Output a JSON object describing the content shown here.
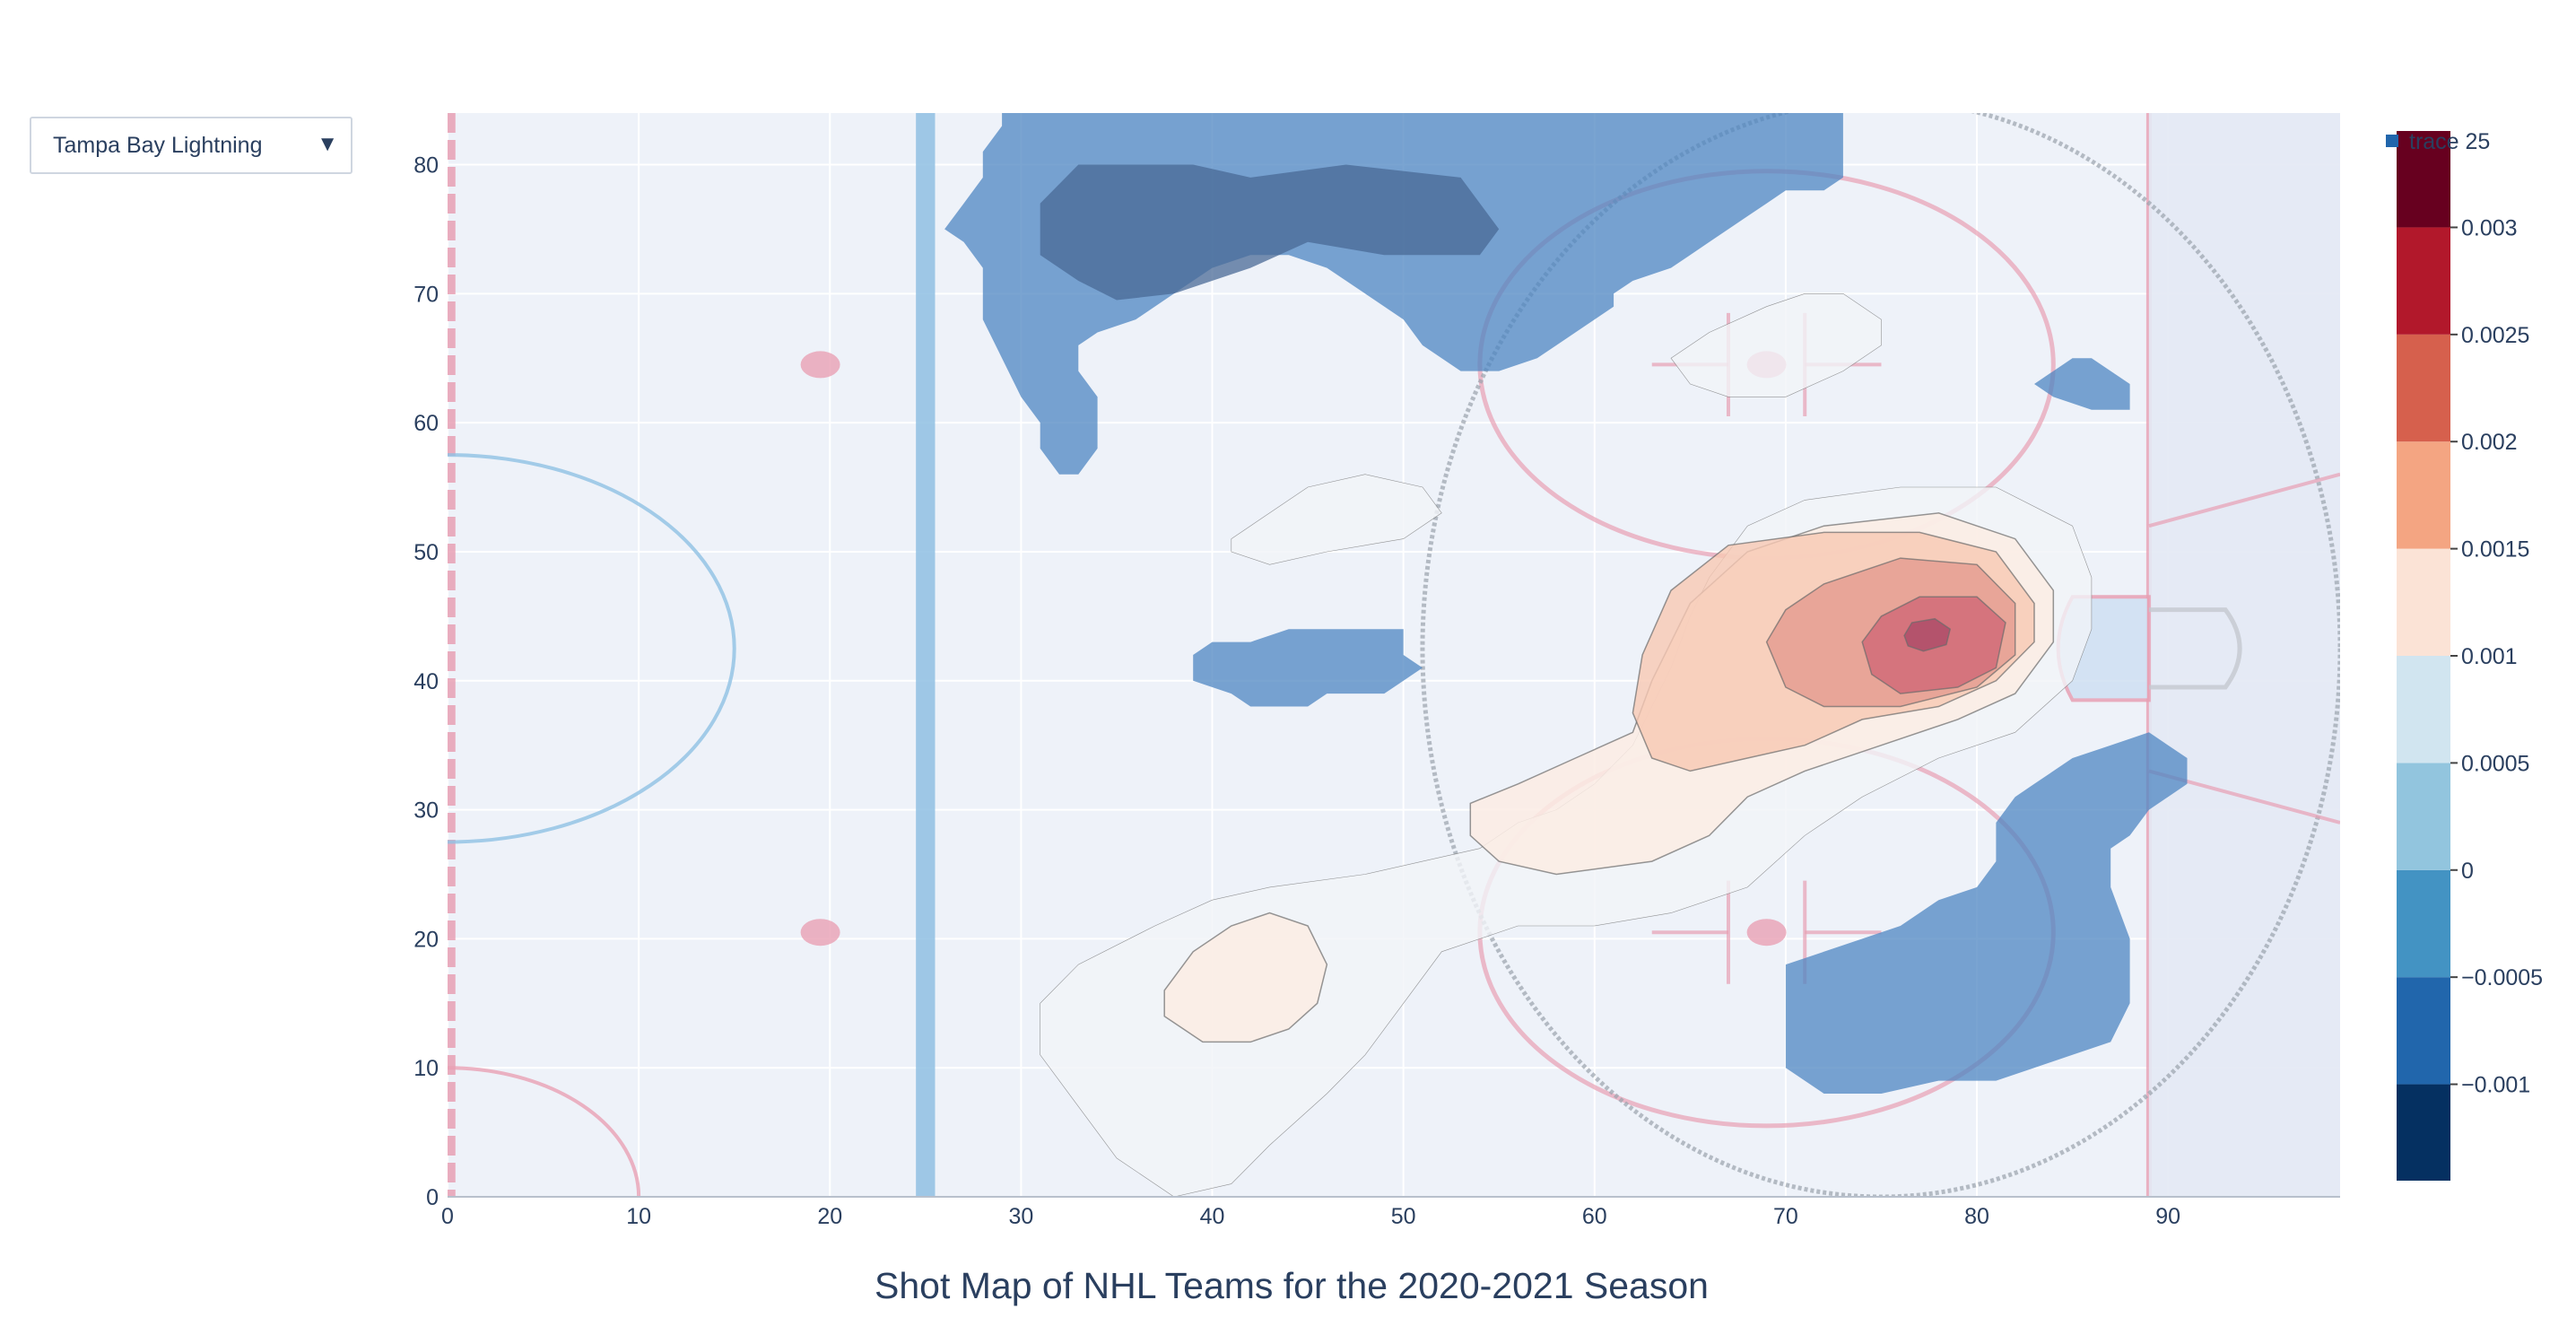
{
  "dropdown": {
    "selected": "Tampa Bay Lightning"
  },
  "chart_data": {
    "type": "heatmap",
    "title": "Shot Map of NHL Teams for the 2020-2021 Season",
    "xlabel": "",
    "ylabel": "",
    "xlim": [
      0,
      99
    ],
    "ylim": [
      0,
      84
    ],
    "x_ticks": [
      0,
      10,
      20,
      30,
      40,
      50,
      60,
      70,
      80,
      90
    ],
    "y_ticks": [
      0,
      10,
      20,
      30,
      40,
      50,
      60,
      70,
      80
    ],
    "grid": true,
    "legend": {
      "entries": [
        "trace 25"
      ],
      "placement": "top-right"
    },
    "colorscale": "RdBu (reversed)",
    "colorbar": {
      "tick_values": [
        -0.001,
        -0.0005,
        0,
        0.0005,
        0.001,
        0.0015,
        0.002,
        0.0025,
        0.003
      ],
      "tick_labels": [
        "−0.001",
        "−0.0005",
        "0",
        "0.0005",
        "0.001",
        "0.0015",
        "0.002",
        "0.0025",
        "0.003"
      ],
      "range": [
        -0.00145,
        0.00345
      ],
      "bands": [
        {
          "from": -0.00145,
          "to": -0.001,
          "color": "#053061"
        },
        {
          "from": -0.001,
          "to": -0.0005,
          "color": "#2166ac"
        },
        {
          "from": -0.0005,
          "to": 0,
          "color": "#4393c3"
        },
        {
          "from": 0,
          "to": 0.0005,
          "color": "#92c5de"
        },
        {
          "from": 0.0005,
          "to": 0.001,
          "color": "#d1e5f0"
        },
        {
          "from": 0.001,
          "to": 0.0015,
          "color": "#fbe3d6"
        },
        {
          "from": 0.0015,
          "to": 0.002,
          "color": "#f4a582"
        },
        {
          "from": 0.002,
          "to": 0.0025,
          "color": "#d6604d"
        },
        {
          "from": 0.0025,
          "to": 0.003,
          "color": "#b2182b"
        },
        {
          "from": 0.003,
          "to": 0.00345,
          "color": "#67001f"
        }
      ]
    },
    "regions": [
      {
        "level": -0.0005,
        "color": "#4d86c2",
        "opacity": 0.75,
        "points": [
          [
            29,
            84
          ],
          [
            73,
            84
          ],
          [
            73,
            79
          ],
          [
            72,
            78
          ],
          [
            70,
            78
          ],
          [
            69,
            77
          ],
          [
            68,
            76
          ],
          [
            67,
            75
          ],
          [
            66,
            74
          ],
          [
            65,
            73
          ],
          [
            64,
            72
          ],
          [
            62,
            71
          ],
          [
            61,
            70
          ],
          [
            61,
            69
          ],
          [
            60,
            68
          ],
          [
            59,
            67
          ],
          [
            58,
            66
          ],
          [
            57,
            65
          ],
          [
            55,
            64
          ],
          [
            53,
            64
          ],
          [
            51,
            66
          ],
          [
            50,
            68
          ],
          [
            48,
            70
          ],
          [
            46,
            72
          ],
          [
            44,
            73
          ],
          [
            42,
            73
          ],
          [
            40,
            72
          ],
          [
            38,
            70
          ],
          [
            36,
            68
          ],
          [
            34,
            67
          ],
          [
            33,
            66
          ],
          [
            33,
            64
          ],
          [
            34,
            62
          ],
          [
            34,
            58
          ],
          [
            33,
            56
          ],
          [
            32,
            56
          ],
          [
            31,
            58
          ],
          [
            31,
            60
          ],
          [
            30,
            62
          ],
          [
            29,
            65
          ],
          [
            28,
            68
          ],
          [
            28,
            72
          ],
          [
            27,
            74
          ],
          [
            26,
            75
          ],
          [
            27,
            77
          ],
          [
            28,
            79
          ],
          [
            28,
            81
          ],
          [
            29,
            83
          ]
        ]
      },
      {
        "level": -0.001,
        "color": "#4a6a96",
        "opacity": 0.75,
        "points": [
          [
            31,
            73
          ],
          [
            33,
            71
          ],
          [
            35,
            69.5
          ],
          [
            38,
            70
          ],
          [
            42,
            72
          ],
          [
            45,
            74
          ],
          [
            49,
            73
          ],
          [
            54,
            73
          ],
          [
            55,
            75
          ],
          [
            53,
            79
          ],
          [
            47,
            80
          ],
          [
            42,
            79
          ],
          [
            39,
            80
          ],
          [
            33,
            80
          ],
          [
            31,
            77
          ]
        ]
      },
      {
        "level": -0.0005,
        "color": "#4d86c2",
        "opacity": 0.75,
        "points": [
          [
            39,
            40
          ],
          [
            41,
            39
          ],
          [
            42,
            38
          ],
          [
            45,
            38
          ],
          [
            46,
            39
          ],
          [
            49,
            39
          ],
          [
            50,
            40
          ],
          [
            51,
            41
          ],
          [
            50,
            42
          ],
          [
            50,
            44
          ],
          [
            44,
            44
          ],
          [
            42,
            43
          ],
          [
            40,
            43
          ],
          [
            39,
            42
          ]
        ]
      },
      {
        "level": -0.0005,
        "color": "#4d86c2",
        "opacity": 0.75,
        "points": [
          [
            83,
            63
          ],
          [
            84,
            62
          ],
          [
            86,
            61
          ],
          [
            88,
            61
          ],
          [
            88,
            63
          ],
          [
            86,
            65
          ],
          [
            85,
            65
          ]
        ]
      },
      {
        "level": -0.0005,
        "color": "#4d86c2",
        "opacity": 0.75,
        "points": [
          [
            70,
            18
          ],
          [
            72,
            19
          ],
          [
            74,
            20
          ],
          [
            76,
            21
          ],
          [
            78,
            23
          ],
          [
            80,
            24
          ],
          [
            81,
            26
          ],
          [
            81,
            29
          ],
          [
            82,
            31
          ],
          [
            83,
            32
          ],
          [
            85,
            34
          ],
          [
            87,
            35
          ],
          [
            89,
            36
          ],
          [
            91,
            34
          ],
          [
            91,
            32
          ],
          [
            90,
            31
          ],
          [
            89,
            30
          ],
          [
            88,
            28
          ],
          [
            87,
            27
          ],
          [
            87,
            26
          ],
          [
            87,
            24
          ],
          [
            88,
            20
          ],
          [
            88,
            15
          ],
          [
            87,
            12
          ],
          [
            85,
            11
          ],
          [
            83,
            10
          ],
          [
            81,
            9
          ],
          [
            78,
            9
          ],
          [
            75,
            8
          ],
          [
            72,
            8
          ],
          [
            70,
            10
          ],
          [
            70,
            12
          ]
        ]
      },
      {
        "level": 0.0005,
        "color": "#f1f4f7",
        "opacity": 0.8,
        "points": [
          [
            37,
            21
          ],
          [
            40,
            23
          ],
          [
            43,
            24
          ],
          [
            48,
            25
          ],
          [
            51,
            26
          ],
          [
            54,
            27
          ],
          [
            56,
            29
          ],
          [
            58,
            30
          ],
          [
            60,
            32
          ],
          [
            62,
            35
          ],
          [
            63,
            38
          ],
          [
            64,
            41
          ],
          [
            65,
            45
          ],
          [
            66,
            48
          ],
          [
            68,
            52
          ],
          [
            71,
            54
          ],
          [
            76,
            55
          ],
          [
            81,
            55
          ],
          [
            85,
            52
          ],
          [
            86,
            48
          ],
          [
            86,
            44
          ],
          [
            85,
            40
          ],
          [
            82,
            36
          ],
          [
            78,
            34
          ],
          [
            74,
            31
          ],
          [
            71,
            28
          ],
          [
            68,
            24
          ],
          [
            64,
            22
          ],
          [
            60,
            21
          ],
          [
            56,
            21
          ],
          [
            52,
            19
          ],
          [
            50,
            15
          ],
          [
            48,
            11
          ],
          [
            46,
            8
          ],
          [
            43,
            4
          ],
          [
            41,
            1
          ],
          [
            38,
            0
          ],
          [
            35,
            3
          ],
          [
            33,
            7
          ],
          [
            31,
            11
          ],
          [
            31,
            15
          ],
          [
            33,
            18
          ]
        ]
      },
      {
        "level": 0.0005,
        "color": "#f1f4f7",
        "opacity": 0.8,
        "points": [
          [
            41,
            51
          ],
          [
            43,
            53
          ],
          [
            45,
            55
          ],
          [
            48,
            56
          ],
          [
            51,
            55
          ],
          [
            52,
            53
          ],
          [
            50,
            51
          ],
          [
            46,
            50
          ],
          [
            43,
            49
          ],
          [
            41,
            50
          ]
        ]
      },
      {
        "level": 0.0005,
        "color": "#f1f4f7",
        "opacity": 0.8,
        "points": [
          [
            64,
            65
          ],
          [
            66,
            67
          ],
          [
            69,
            69
          ],
          [
            71,
            70
          ],
          [
            73,
            70
          ],
          [
            75,
            68
          ],
          [
            75,
            66
          ],
          [
            73,
            64
          ],
          [
            70,
            62
          ],
          [
            67,
            62
          ],
          [
            65,
            63
          ]
        ]
      },
      {
        "level": 0.001,
        "color": "#fbece4",
        "opacity": 0.85,
        "points": [
          [
            53.5,
            30.5
          ],
          [
            56,
            32
          ],
          [
            59,
            34
          ],
          [
            62,
            36
          ],
          [
            63,
            40
          ],
          [
            65,
            46
          ],
          [
            68,
            50
          ],
          [
            72,
            52
          ],
          [
            78,
            53
          ],
          [
            82,
            51
          ],
          [
            84,
            47
          ],
          [
            84,
            43
          ],
          [
            82,
            39
          ],
          [
            79,
            37
          ],
          [
            75,
            35
          ],
          [
            71,
            33
          ],
          [
            68,
            31
          ],
          [
            66,
            28
          ],
          [
            63,
            26
          ],
          [
            58,
            25
          ],
          [
            55,
            26
          ],
          [
            53.5,
            28
          ]
        ]
      },
      {
        "level": 0.001,
        "color": "#fbece4",
        "opacity": 0.85,
        "points": [
          [
            37.5,
            16
          ],
          [
            39,
            19
          ],
          [
            41,
            21
          ],
          [
            43,
            22
          ],
          [
            45,
            21
          ],
          [
            46,
            18
          ],
          [
            45.5,
            15
          ],
          [
            44,
            13
          ],
          [
            42,
            12
          ],
          [
            39.5,
            12
          ],
          [
            37.5,
            14
          ]
        ]
      },
      {
        "level": 0.0015,
        "color": "#f7c8b3",
        "opacity": 0.8,
        "points": [
          [
            62,
            37.5
          ],
          [
            62.5,
            42
          ],
          [
            64,
            47
          ],
          [
            67,
            50.5
          ],
          [
            72,
            51.5
          ],
          [
            77,
            51.5
          ],
          [
            81,
            50
          ],
          [
            83,
            46
          ],
          [
            83,
            43
          ],
          [
            81,
            40
          ],
          [
            78,
            38
          ],
          [
            74,
            37
          ],
          [
            71,
            35
          ],
          [
            68,
            34
          ],
          [
            65,
            33
          ],
          [
            63,
            34
          ]
        ]
      },
      {
        "level": 0.002,
        "color": "#e39a8e",
        "opacity": 0.8,
        "points": [
          [
            69,
            43
          ],
          [
            70,
            45.5
          ],
          [
            72,
            47.5
          ],
          [
            76,
            49.5
          ],
          [
            80,
            49
          ],
          [
            82,
            46
          ],
          [
            82,
            42
          ],
          [
            80,
            39.5
          ],
          [
            76,
            38
          ],
          [
            72,
            38
          ],
          [
            70,
            39.5
          ]
        ]
      },
      {
        "level": 0.0025,
        "color": "#d16b78",
        "opacity": 0.85,
        "points": [
          [
            74,
            43
          ],
          [
            75,
            45
          ],
          [
            77,
            46.5
          ],
          [
            80,
            46.5
          ],
          [
            81.5,
            44.5
          ],
          [
            81,
            41
          ],
          [
            79,
            39.5
          ],
          [
            76,
            39
          ],
          [
            74.5,
            40.5
          ]
        ]
      },
      {
        "level": 0.003,
        "color": "#b0506a",
        "opacity": 0.9,
        "points": [
          [
            76.2,
            43.5
          ],
          [
            76.6,
            44.5
          ],
          [
            77.8,
            44.8
          ],
          [
            78.6,
            44
          ],
          [
            78.4,
            42.8
          ],
          [
            77.2,
            42.3
          ],
          [
            76.4,
            42.7
          ]
        ]
      }
    ]
  }
}
